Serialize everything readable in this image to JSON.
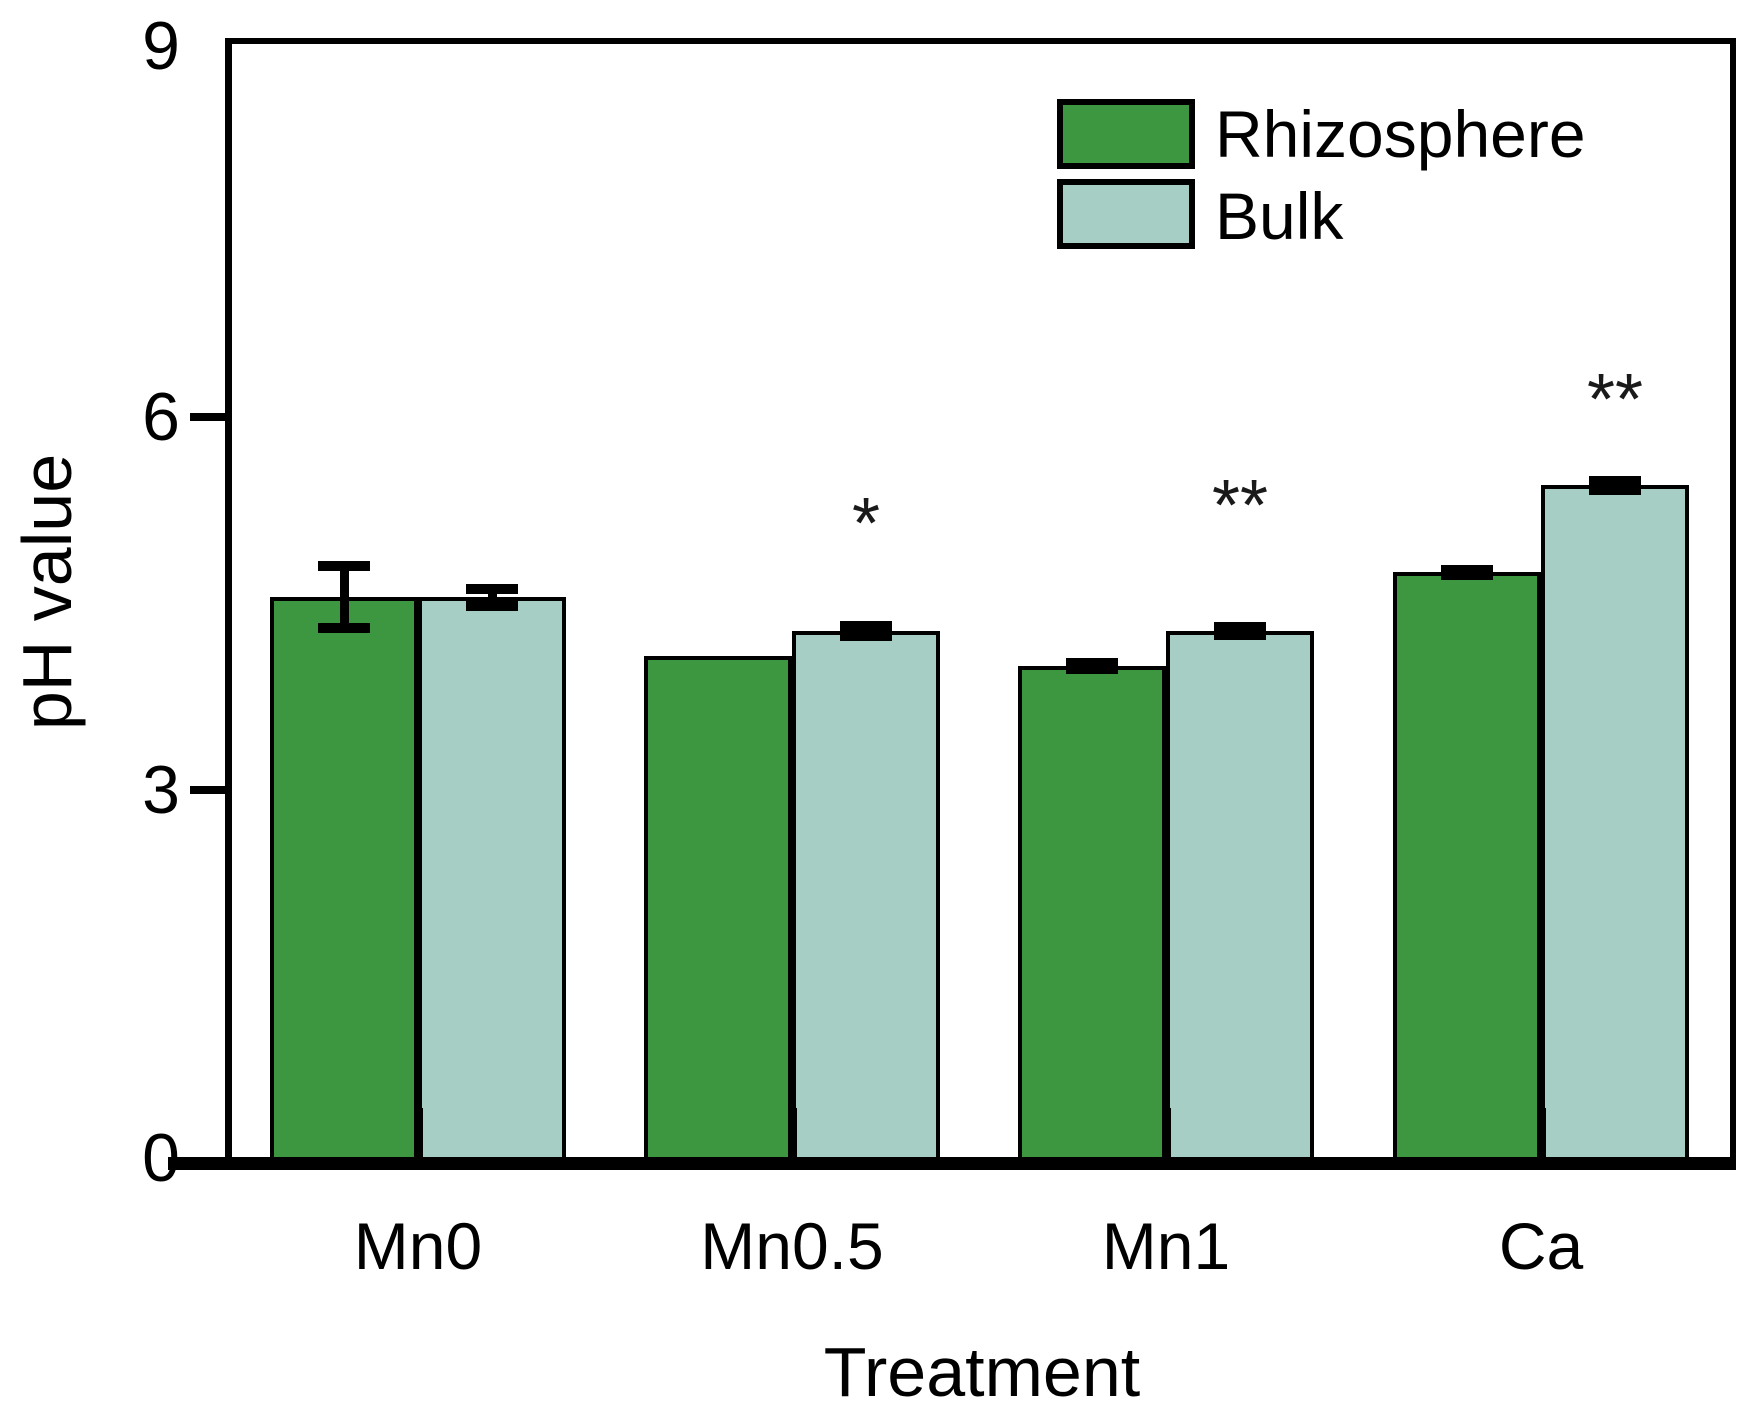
{
  "chart_data": {
    "type": "bar",
    "title": "",
    "xlabel": "Treatment",
    "ylabel": "pH value",
    "ylim": [
      0,
      9
    ],
    "yticks": [
      0,
      3,
      6,
      9
    ],
    "categories": [
      "Mn0",
      "Mn0.5",
      "Mn1",
      "Ca"
    ],
    "series": [
      {
        "name": "Rhizosphere",
        "color": "#3d9740",
        "values": [
          4.55,
          4.08,
          4.0,
          4.75
        ],
        "errors": [
          0.25,
          0,
          0.025,
          0.02
        ]
      },
      {
        "name": "Bulk",
        "color": "#a7cec5",
        "values": [
          4.55,
          4.28,
          4.28,
          5.45
        ],
        "errors": [
          0.07,
          0.04,
          0.03,
          0.035
        ]
      }
    ],
    "significance_marks": [
      {
        "category": "Mn0.5",
        "label": "*",
        "y": 5.2
      },
      {
        "category": "Mn1",
        "label": "**",
        "y": 5.35
      },
      {
        "category": "Ca",
        "label": "**",
        "y": 6.2
      }
    ],
    "legend_position": "top-right",
    "grid": false,
    "bar_outline_color": "#000000",
    "background_color": "#ffffff"
  }
}
